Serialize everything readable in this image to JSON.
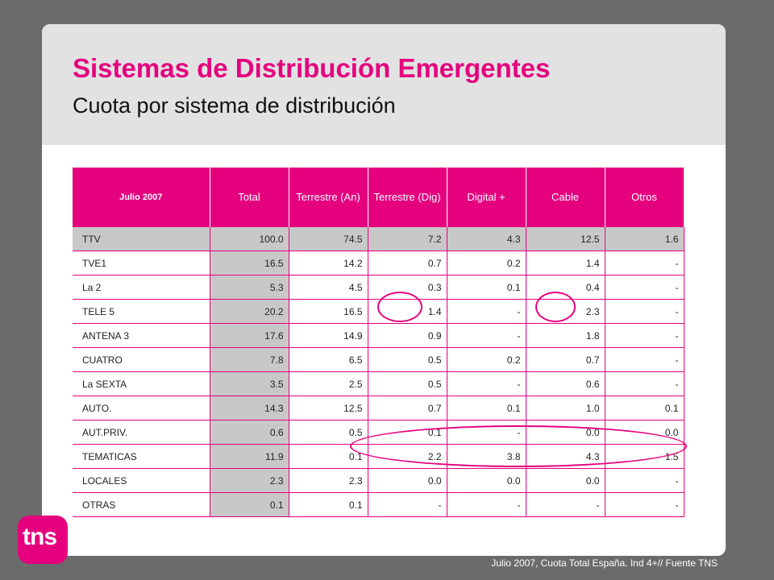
{
  "title": "Sistemas de Distribución Emergentes",
  "subtitle": "Cuota por sistema de distribución",
  "table": {
    "headers": [
      "Julio 2007",
      "Total",
      "Terrestre (An)",
      "Terrestre (Dig)",
      "Digital +",
      "Cable",
      "Otros"
    ],
    "rows": [
      [
        "TTV",
        "100.0",
        "74.5",
        "7.2",
        "4.3",
        "12.5",
        "1.6"
      ],
      [
        "TVE1",
        "16.5",
        "14.2",
        "0.7",
        "0.2",
        "1.4",
        "-"
      ],
      [
        "La 2",
        "5.3",
        "4.5",
        "0.3",
        "0.1",
        "0.4",
        "-"
      ],
      [
        "TELE 5",
        "20.2",
        "16.5",
        "1.4",
        "-",
        "2.3",
        "-"
      ],
      [
        "ANTENA 3",
        "17.6",
        "14.9",
        "0.9",
        "-",
        "1.8",
        "-"
      ],
      [
        "CUATRO",
        "7.8",
        "6.5",
        "0.5",
        "0.2",
        "0.7",
        "-"
      ],
      [
        "La SEXTA",
        "3.5",
        "2.5",
        "0.5",
        "-",
        "0.6",
        "-"
      ],
      [
        "AUTO.",
        "14.3",
        "12.5",
        "0.7",
        "0.1",
        "1.0",
        "0.1"
      ],
      [
        "AUT.PRIV.",
        "0.6",
        "0.5",
        "0.1",
        "-",
        "0.0",
        "0.0"
      ],
      [
        "TEMATICAS",
        "11.9",
        "0.1",
        "2.2",
        "3.8",
        "4.3",
        "1.5"
      ],
      [
        "LOCALES",
        "2.3",
        "2.3",
        "0.0",
        "0.0",
        "0.0",
        "-"
      ],
      [
        "OTRAS",
        "0.1",
        "0.1",
        "-",
        "-",
        "-",
        "-"
      ]
    ]
  },
  "logo": {
    "text": "tns",
    "trademark": "™"
  },
  "footer": "Julio 2007, Cuota Total España. Ind 4+// Fuente TNS",
  "colors": {
    "accent": "#e5007e",
    "header_bg": "#e2e2e2",
    "page_bg": "#6b6b6b",
    "total_col": "#c8c8c8"
  }
}
